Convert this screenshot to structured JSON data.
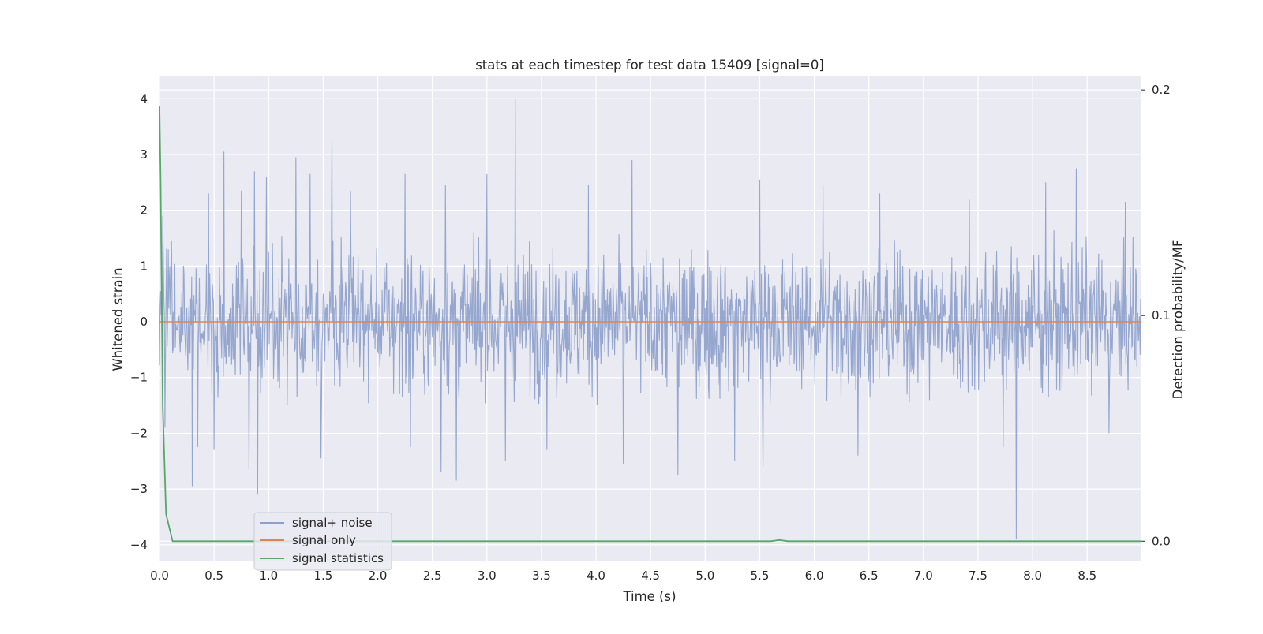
{
  "chart_data": {
    "type": "line",
    "title": "stats at each timestep for test data 15409 [signal=0]",
    "xlabel": "Time (s)",
    "ylabel": "Whitened strain",
    "y2label": "Detection probability/MF",
    "xlim": [
      0.0,
      8.99
    ],
    "ylim": [
      -4.3,
      4.4
    ],
    "y2lim": [
      -0.009,
      0.206
    ],
    "xticks": [
      0.0,
      0.5,
      1.0,
      1.5,
      2.0,
      2.5,
      3.0,
      3.5,
      4.0,
      4.5,
      5.0,
      5.5,
      6.0,
      6.5,
      7.0,
      7.5,
      8.0,
      8.5
    ],
    "xtick_labels": [
      "0.0",
      "0.5",
      "1.0",
      "1.5",
      "2.0",
      "2.5",
      "3.0",
      "3.5",
      "4.0",
      "4.5",
      "5.0",
      "5.5",
      "6.0",
      "6.5",
      "7.0",
      "7.5",
      "8.0",
      "8.5"
    ],
    "yticks": [
      -4,
      -3,
      -2,
      -1,
      0,
      1,
      2,
      3,
      4
    ],
    "ytick_labels": [
      "−4",
      "−3",
      "−2",
      "−1",
      "0",
      "1",
      "2",
      "3",
      "4"
    ],
    "y2ticks": [
      0.0,
      0.1,
      0.2
    ],
    "y2tick_labels": [
      "0.0",
      "0.1",
      "0.2"
    ],
    "grid": true,
    "legend_position": "lower-left",
    "background": "#eaeaf2",
    "series": [
      {
        "name": "signal+ noise",
        "axis": "left",
        "color": "#8da0cb",
        "kind": "noise",
        "sample_interval": 0.005,
        "typical_range": [
          -1.5,
          1.8
        ],
        "peaks": [
          {
            "x": 0.03,
            "y": 1.9
          },
          {
            "x": 0.05,
            "y": -1.9
          },
          {
            "x": 0.08,
            "y": 1.3
          },
          {
            "x": 0.3,
            "y": -2.95
          },
          {
            "x": 0.35,
            "y": -2.25
          },
          {
            "x": 0.45,
            "y": 2.3
          },
          {
            "x": 0.5,
            "y": -2.3
          },
          {
            "x": 0.59,
            "y": 3.05
          },
          {
            "x": 0.75,
            "y": 2.35
          },
          {
            "x": 0.82,
            "y": -2.65
          },
          {
            "x": 0.87,
            "y": 2.7
          },
          {
            "x": 0.9,
            "y": -3.1
          },
          {
            "x": 0.98,
            "y": 2.6
          },
          {
            "x": 1.25,
            "y": 2.95
          },
          {
            "x": 1.38,
            "y": 2.65
          },
          {
            "x": 1.48,
            "y": -2.45
          },
          {
            "x": 1.58,
            "y": 3.25
          },
          {
            "x": 1.75,
            "y": 2.35
          },
          {
            "x": 2.25,
            "y": 2.65
          },
          {
            "x": 2.3,
            "y": -2.25
          },
          {
            "x": 2.58,
            "y": -2.7
          },
          {
            "x": 2.62,
            "y": 2.45
          },
          {
            "x": 2.72,
            "y": -2.85
          },
          {
            "x": 3.0,
            "y": 2.65
          },
          {
            "x": 3.17,
            "y": -2.5
          },
          {
            "x": 3.26,
            "y": 4.0
          },
          {
            "x": 3.55,
            "y": -2.3
          },
          {
            "x": 3.93,
            "y": 2.45
          },
          {
            "x": 4.25,
            "y": -2.55
          },
          {
            "x": 4.33,
            "y": 2.9
          },
          {
            "x": 4.75,
            "y": -2.75
          },
          {
            "x": 5.27,
            "y": -2.5
          },
          {
            "x": 5.5,
            "y": 2.55
          },
          {
            "x": 5.53,
            "y": -2.6
          },
          {
            "x": 6.08,
            "y": 2.45
          },
          {
            "x": 6.4,
            "y": -2.4
          },
          {
            "x": 6.6,
            "y": 2.3
          },
          {
            "x": 7.42,
            "y": 2.2
          },
          {
            "x": 7.73,
            "y": -2.25
          },
          {
            "x": 7.85,
            "y": -3.9
          },
          {
            "x": 8.12,
            "y": 2.5
          },
          {
            "x": 8.4,
            "y": 2.75
          },
          {
            "x": 8.7,
            "y": -2.0
          },
          {
            "x": 8.85,
            "y": 2.15
          }
        ]
      },
      {
        "name": "signal only",
        "axis": "left",
        "color": "#dd8452",
        "x": [
          0.0,
          8.99
        ],
        "y": [
          0.0,
          0.0
        ]
      },
      {
        "name": "signal statistics",
        "axis": "right",
        "color": "#55a868",
        "x": [
          0.0,
          0.01,
          0.03,
          0.06,
          0.12,
          5.6,
          5.68,
          5.76,
          8.99
        ],
        "y": [
          0.193,
          0.16,
          0.06,
          0.012,
          0.0,
          0.0,
          0.0005,
          0.0,
          0.0
        ]
      }
    ]
  }
}
